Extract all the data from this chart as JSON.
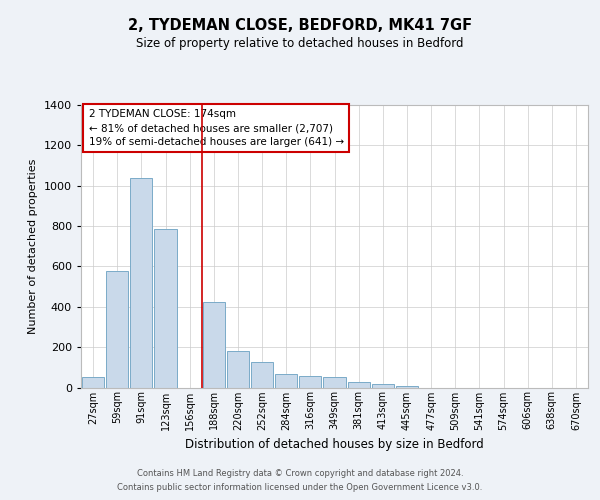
{
  "title": "2, TYDEMAN CLOSE, BEDFORD, MK41 7GF",
  "subtitle": "Size of property relative to detached houses in Bedford",
  "xlabel": "Distribution of detached houses by size in Bedford",
  "ylabel": "Number of detached properties",
  "bar_color": "#c9d9ea",
  "bar_edge_color": "#7aaac8",
  "background_color": "#eef2f7",
  "plot_bg_color": "#ffffff",
  "categories": [
    "27sqm",
    "59sqm",
    "91sqm",
    "123sqm",
    "156sqm",
    "188sqm",
    "220sqm",
    "252sqm",
    "284sqm",
    "316sqm",
    "349sqm",
    "381sqm",
    "413sqm",
    "445sqm",
    "477sqm",
    "509sqm",
    "541sqm",
    "574sqm",
    "606sqm",
    "638sqm",
    "670sqm"
  ],
  "values": [
    50,
    575,
    1040,
    785,
    0,
    425,
    180,
    125,
    65,
    55,
    50,
    25,
    15,
    5,
    0,
    0,
    0,
    0,
    0,
    0,
    0
  ],
  "ylim": [
    0,
    1400
  ],
  "yticks": [
    0,
    200,
    400,
    600,
    800,
    1000,
    1200,
    1400
  ],
  "vline_color": "#cc0000",
  "vline_pos": 4.5,
  "annotation_title": "2 TYDEMAN CLOSE: 174sqm",
  "annotation_line1": "← 81% of detached houses are smaller (2,707)",
  "annotation_line2": "19% of semi-detached houses are larger (641) →",
  "annotation_box_color": "#ffffff",
  "annotation_box_edge": "#cc0000",
  "footer1": "Contains HM Land Registry data © Crown copyright and database right 2024.",
  "footer2": "Contains public sector information licensed under the Open Government Licence v3.0."
}
